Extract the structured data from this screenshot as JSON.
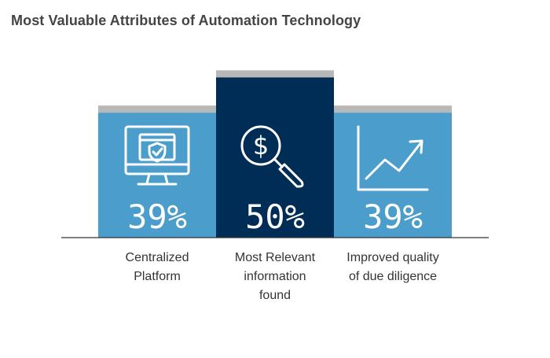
{
  "chart_data": {
    "type": "bar",
    "title": "Most Valuable Attributes of Automation Technology",
    "categories": [
      "Centralized\nPlatform",
      "Most Relevant\ninformation\nfound",
      "Improved quality\nof due diligence"
    ],
    "values": [
      39,
      50,
      39
    ],
    "labels": [
      "39%",
      "50%",
      "39%"
    ],
    "icons": [
      "shield-monitor-icon",
      "dollar-search-icon",
      "growth-chart-icon"
    ],
    "ylim": [
      0,
      55
    ],
    "grid": false,
    "legend": "none"
  },
  "colors": {
    "bar_light": "#4b9dcb",
    "bar_dark": "#002d56",
    "cap": "#b8b8b8",
    "baseline": "#333333"
  }
}
